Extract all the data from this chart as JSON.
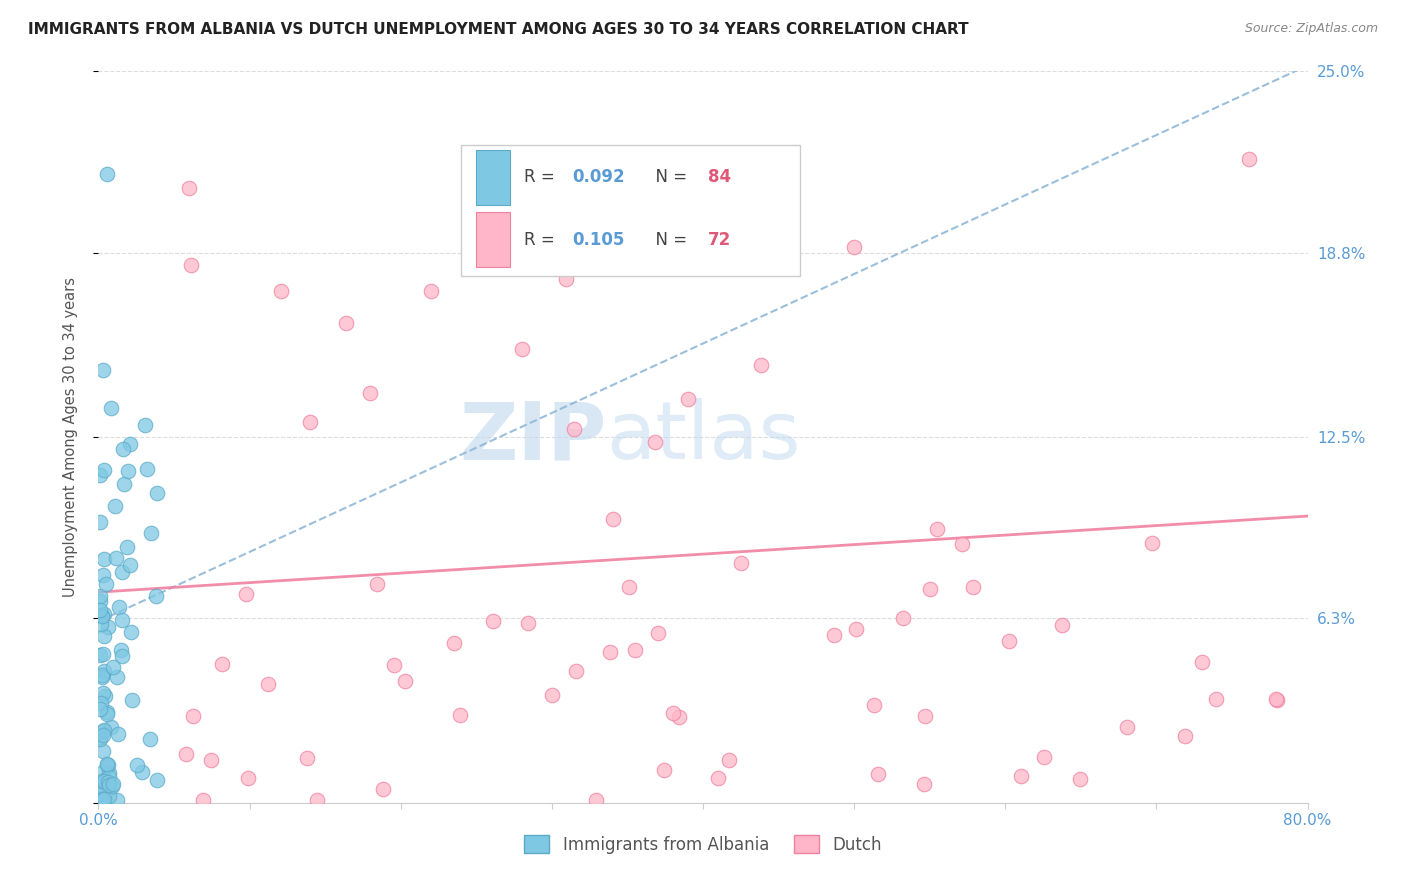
{
  "title": "IMMIGRANTS FROM ALBANIA VS DUTCH UNEMPLOYMENT AMONG AGES 30 TO 34 YEARS CORRELATION CHART",
  "source": "Source: ZipAtlas.com",
  "ylabel": "Unemployment Among Ages 30 to 34 years",
  "xlim": [
    0.0,
    0.8
  ],
  "ylim": [
    0.0,
    0.25
  ],
  "ytick_positions": [
    0.0,
    0.063,
    0.125,
    0.188,
    0.25
  ],
  "ytick_labels_right": [
    "",
    "6.3%",
    "12.5%",
    "18.8%",
    "25.0%"
  ],
  "xtick_positions": [
    0.0,
    0.1,
    0.2,
    0.3,
    0.4,
    0.5,
    0.6,
    0.7,
    0.8
  ],
  "xtick_labels": [
    "0.0%",
    "",
    "",
    "",
    "",
    "",
    "",
    "",
    "80.0%"
  ],
  "series1_label": "Immigrants from Albania",
  "series1_R": "0.092",
  "series1_N": "84",
  "series1_color": "#7ec8e3",
  "series1_edge": "#5aaac8",
  "series2_label": "Dutch",
  "series2_R": "0.105",
  "series2_N": "72",
  "series2_color": "#ffb6c8",
  "series2_edge": "#f080a0",
  "trend1_color": "#90b8d8",
  "trend2_color": "#f080a0",
  "tick_color": "#5a9bd5",
  "grid_color": "#dddddd",
  "background_color": "#ffffff",
  "trend1_y0": 0.062,
  "trend1_y1": 0.252,
  "trend2_y0": 0.072,
  "trend2_y1": 0.098
}
